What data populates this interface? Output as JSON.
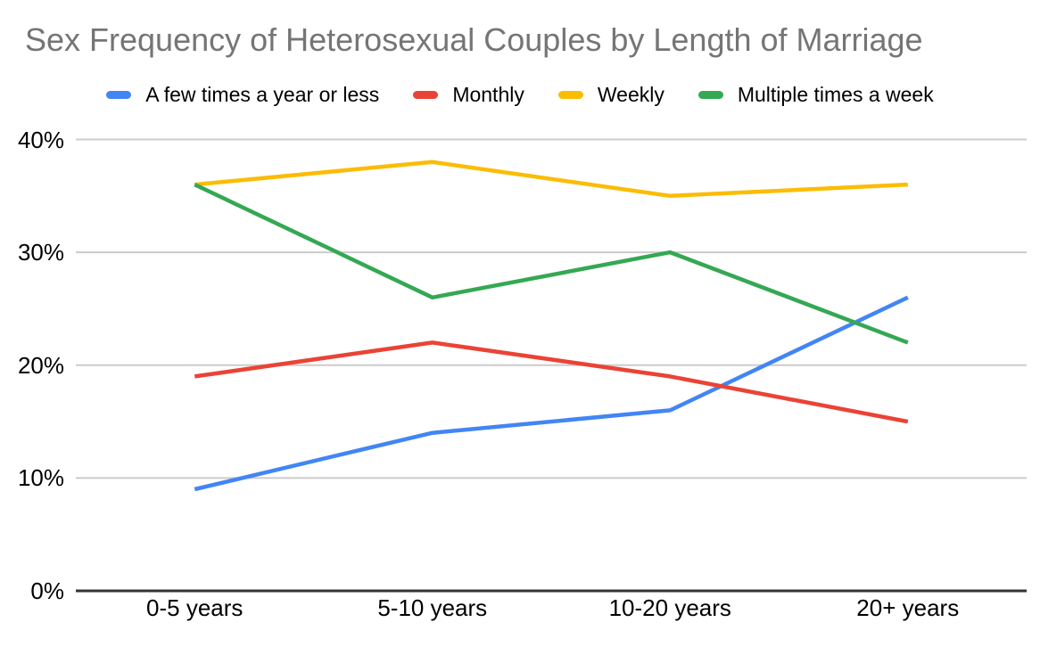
{
  "chart_data": {
    "type": "line",
    "title": "Sex Frequency of Heterosexual Couples by Length of Marriage",
    "categories": [
      "0-5 years",
      "5-10 years",
      "10-20 years",
      "20+ years"
    ],
    "series": [
      {
        "name": "A few times a year or less",
        "color": "#4285F4",
        "values": [
          9,
          14,
          16,
          26
        ]
      },
      {
        "name": "Monthly",
        "color": "#EA4335",
        "values": [
          19,
          22,
          19,
          15
        ]
      },
      {
        "name": "Weekly",
        "color": "#FBBC04",
        "values": [
          36,
          38,
          35,
          36
        ]
      },
      {
        "name": "Multiple times a week",
        "color": "#34A853",
        "values": [
          36,
          26,
          30,
          22
        ]
      }
    ],
    "xlabel": "",
    "ylabel": "",
    "ylim": [
      0,
      40
    ],
    "y_ticks": [
      0,
      10,
      20,
      30,
      40
    ],
    "y_tick_labels": [
      "0%",
      "10%",
      "20%",
      "30%",
      "40%"
    ],
    "grid": true,
    "legend_position": "top",
    "colors": {
      "grid": "#cccccc",
      "axis": "#333333",
      "title": "#757575",
      "text": "#000000",
      "background": "#ffffff"
    }
  }
}
